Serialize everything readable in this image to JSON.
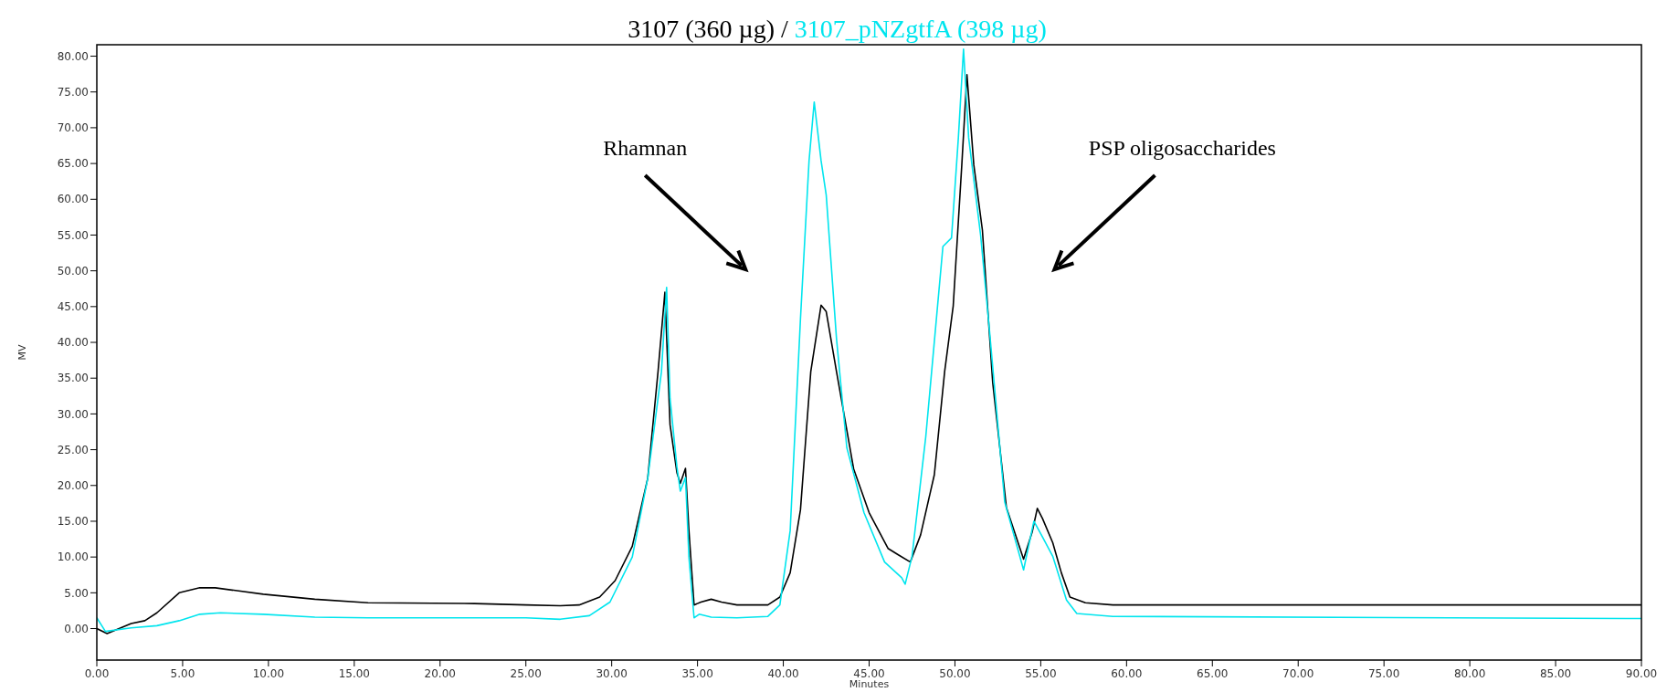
{
  "chart_data": {
    "type": "line",
    "xlabel": "Minutes",
    "ylabel": "MV",
    "legend": "top",
    "grid": false,
    "marker": "none",
    "line_style": "solid",
    "xlim": [
      0,
      90
    ],
    "ylim": [
      -4.4,
      81.6
    ],
    "xticks": [
      {
        "value": 0,
        "label": "0.00"
      },
      {
        "value": 5,
        "label": "5.00"
      },
      {
        "value": 10,
        "label": "10.00"
      },
      {
        "value": 15,
        "label": "15.00"
      },
      {
        "value": 20,
        "label": "20.00"
      },
      {
        "value": 25,
        "label": "25.00"
      },
      {
        "value": 30,
        "label": "30.00"
      },
      {
        "value": 35,
        "label": "35.00"
      },
      {
        "value": 40,
        "label": "40.00"
      },
      {
        "value": 45,
        "label": "45.00"
      },
      {
        "value": 50,
        "label": "50.00"
      },
      {
        "value": 55,
        "label": "55.00"
      },
      {
        "value": 60,
        "label": "60.00"
      },
      {
        "value": 65,
        "label": "65.00"
      },
      {
        "value": 70,
        "label": "70.00"
      },
      {
        "value": 75,
        "label": "75.00"
      },
      {
        "value": 80,
        "label": "80.00"
      },
      {
        "value": 85,
        "label": "85.00"
      },
      {
        "value": 90,
        "label": "90.00"
      }
    ],
    "yticks": [
      {
        "value": 0,
        "label": "0.00"
      },
      {
        "value": 5,
        "label": "5.00"
      },
      {
        "value": 10,
        "label": "10.00"
      },
      {
        "value": 15,
        "label": "15.00"
      },
      {
        "value": 20,
        "label": "20.00"
      },
      {
        "value": 25,
        "label": "25.00"
      },
      {
        "value": 30,
        "label": "30.00"
      },
      {
        "value": 35,
        "label": "35.00"
      },
      {
        "value": 40,
        "label": "40.00"
      },
      {
        "value": 45,
        "label": "45.00"
      },
      {
        "value": 50,
        "label": "50.00"
      },
      {
        "value": 55,
        "label": "55.00"
      },
      {
        "value": 60,
        "label": "60.00"
      },
      {
        "value": 65,
        "label": "65.00"
      },
      {
        "value": 70,
        "label": "70.00"
      },
      {
        "value": 75,
        "label": "75.00"
      },
      {
        "value": 80,
        "label": "80.00"
      }
    ],
    "annotations": [
      "Rhamnan",
      "PSP oligosaccharides"
    ],
    "legend_title": "/",
    "series": [
      {
        "name": "3107 (360 µg)",
        "color": "#000000",
        "x": [
          0,
          0.6,
          2.0,
          2.8,
          3.5,
          4.8,
          6.0,
          6.9,
          9.7,
          12.7,
          15.8,
          22,
          25,
          27,
          28.1,
          29.3,
          30.2,
          31.2,
          32.1,
          32.7,
          33.1,
          33.4,
          33.8,
          34.0,
          34.3,
          34.5,
          34.8,
          35.2,
          35.8,
          36.4,
          37.3,
          39.1,
          39.8,
          40.4,
          41.0,
          41.6,
          42.2,
          42.5,
          43.1,
          44.1,
          45.0,
          46.1,
          46.7,
          47.4,
          48.0,
          48.8,
          49.4,
          49.9,
          50.4,
          50.7,
          51.1,
          51.6,
          52.2,
          53.0,
          54.0,
          54.5,
          54.8,
          55.1,
          55.7,
          56.2,
          56.7,
          57.6,
          59.2,
          90
        ],
        "values": [
          0,
          -0.7,
          0.7,
          1.1,
          2.2,
          5.0,
          5.7,
          5.7,
          4.8,
          4.1,
          3.6,
          3.5,
          3.3,
          3.2,
          3.3,
          4.4,
          6.7,
          11.5,
          21,
          35.9,
          47,
          28.5,
          21.8,
          20.3,
          22.4,
          13.7,
          3.3,
          3.7,
          4.1,
          3.7,
          3.3,
          3.3,
          4.4,
          7.8,
          16.6,
          35.9,
          45.2,
          44.3,
          35.9,
          22.3,
          16.2,
          11.2,
          10.3,
          9.3,
          13.1,
          21.5,
          35.9,
          45.1,
          64.8,
          77.4,
          64.8,
          55.7,
          34.4,
          16.9,
          9.7,
          13.5,
          16.8,
          15.4,
          12.0,
          7.8,
          4.4,
          3.6,
          3.3,
          3.3
        ]
      },
      {
        "name": "3107_pNZgtfA (398 µg)",
        "color": "#00e5ee",
        "x": [
          0,
          0.5,
          2.0,
          3.5,
          4.8,
          6.0,
          7.2,
          9.7,
          12.7,
          15.8,
          25,
          27,
          28.7,
          29.9,
          31.2,
          32.1,
          32.9,
          33.2,
          33.4,
          33.8,
          34.0,
          34.3,
          34.5,
          34.8,
          35.1,
          35.8,
          37.3,
          39.1,
          39.8,
          40.4,
          41.0,
          41.5,
          41.8,
          42.2,
          42.5,
          43.1,
          43.7,
          44.7,
          45.9,
          46.9,
          47.1,
          47.5,
          48.3,
          49.3,
          49.8,
          50.2,
          50.5,
          50.8,
          51.5,
          52.0,
          52.9,
          54.0,
          54.6,
          55.1,
          55.7,
          56.5,
          57.1,
          59.2,
          90
        ],
        "values": [
          1.5,
          -0.4,
          0.1,
          0.4,
          1.1,
          2.0,
          2.2,
          2.0,
          1.6,
          1.5,
          1.5,
          1.3,
          1.8,
          3.7,
          10,
          21,
          35.9,
          47.7,
          32.2,
          22.6,
          19.2,
          21.1,
          10,
          1.5,
          2.0,
          1.6,
          1.5,
          1.7,
          3.3,
          13.7,
          43.3,
          65.4,
          73.6,
          65.4,
          60.6,
          40.5,
          25.3,
          16.2,
          9.3,
          7.1,
          6.2,
          10.1,
          26.8,
          53.4,
          54.6,
          68.6,
          81,
          68.6,
          54.9,
          42.0,
          17.7,
          8.2,
          15.0,
          12.8,
          10.1,
          4.0,
          2.1,
          1.7,
          1.4
        ]
      }
    ]
  }
}
